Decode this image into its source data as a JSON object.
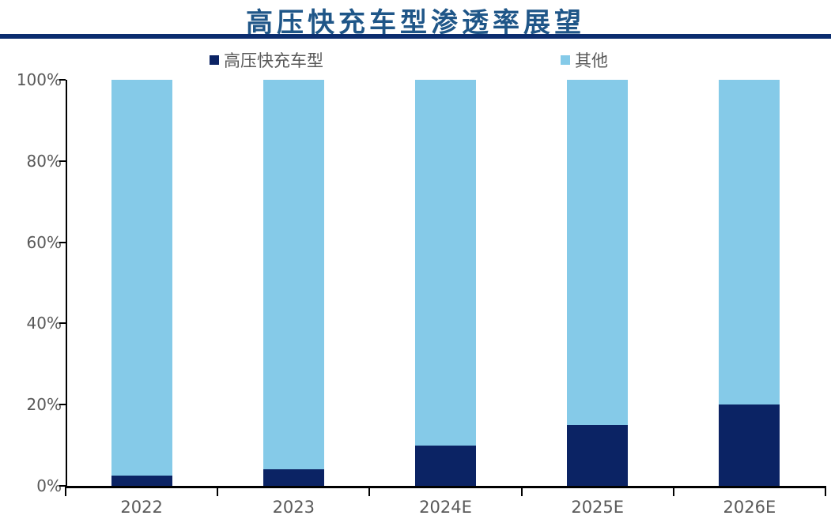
{
  "title": "高压快充车型渗透率展望",
  "colors": {
    "title_text": "#1F5688",
    "divider": "#0B2D6F",
    "navy_series": "#0B2364",
    "light_blue_series": "#85CAE8",
    "axis": "#000000",
    "label_gray": "#595959",
    "background": "#FFFFFF"
  },
  "legend": {
    "items": [
      {
        "label": "高压快充车型",
        "color": "#0B2364"
      },
      {
        "label": "其他",
        "color": "#85CAE8"
      }
    ]
  },
  "chart_data": {
    "type": "bar",
    "stacked": true,
    "orientation": "vertical",
    "title": "高压快充车型渗透率展望",
    "categories": [
      "2022",
      "2023",
      "2024E",
      "2025E",
      "2026E"
    ],
    "series": [
      {
        "name": "高压快充车型",
        "color": "#0B2364",
        "values": [
          2.5,
          4,
          10,
          15,
          20
        ]
      },
      {
        "name": "其他",
        "color": "#85CAE8",
        "values": [
          97.5,
          96,
          90,
          85,
          80
        ]
      }
    ],
    "xlabel": "",
    "ylabel": "",
    "ylim": [
      0,
      100
    ],
    "ytick_percents": [
      0,
      20,
      40,
      60,
      80,
      100
    ],
    "ytick_labels": [
      "0%",
      "20%",
      "40%",
      "60%",
      "80%",
      "100%"
    ],
    "grid": false,
    "legend_position": "top"
  }
}
